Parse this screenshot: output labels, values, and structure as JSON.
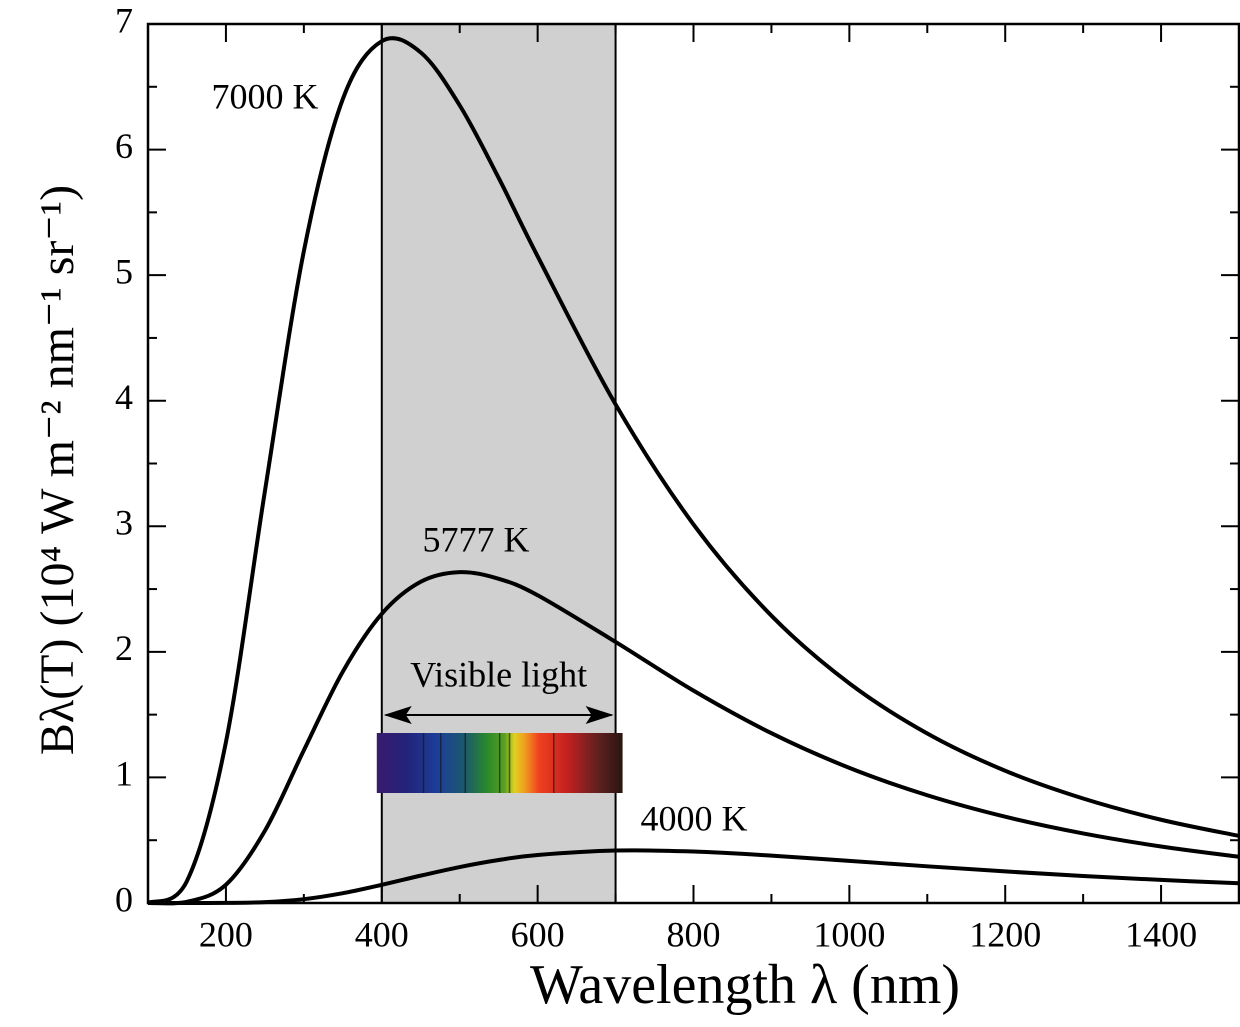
{
  "chart_data": {
    "type": "line",
    "x_label": "Wavelength λ (nm)",
    "y_label": "Bλ(T) (10⁴ W m⁻² nm⁻¹ sr⁻¹)",
    "x": [
      100,
      150,
      200,
      250,
      300,
      350,
      400,
      450,
      500,
      550,
      600,
      700,
      800,
      900,
      1000,
      1100,
      1200,
      1300,
      1400,
      1500
    ],
    "series": [
      {
        "name": "7000 K",
        "color": "#000000",
        "values": [
          0.0014,
          0.1755,
          1.281,
          3.279,
          5.191,
          6.402,
          6.863,
          6.773,
          6.352,
          5.774,
          5.15,
          3.971,
          3.015,
          2.288,
          1.749,
          1.35,
          1.053,
          0.832,
          0.663,
          0.534
        ]
      },
      {
        "name": "5777 K",
        "color": "#000000",
        "values": [
          2e-05,
          0.00965,
          0.1454,
          0.575,
          1.216,
          1.843,
          2.303,
          2.558,
          2.635,
          2.582,
          2.451,
          2.079,
          1.691,
          1.352,
          1.076,
          0.858,
          0.687,
          0.554,
          0.45,
          0.368
        ]
      },
      {
        "name": "4000 K",
        "color": "#000000",
        "values": [
          0,
          1e-05,
          0.00058,
          0.00688,
          0.0304,
          0.0781,
          0.1446,
          0.218,
          0.2865,
          0.3423,
          0.3826,
          0.4181,
          0.4099,
          0.3776,
          0.3356,
          0.2922,
          0.2514,
          0.2152,
          0.1837,
          0.1568
        ]
      }
    ],
    "xlim": [
      100,
      1500
    ],
    "ylim": [
      0,
      7
    ],
    "xticks": [
      200,
      400,
      600,
      800,
      1000,
      1200,
      1400
    ],
    "yticks": [
      0,
      1,
      2,
      3,
      4,
      5,
      6,
      7
    ],
    "xminorticks": [
      300,
      500,
      700,
      900,
      1100,
      1300
    ],
    "yminorticks": [
      0.5,
      1.5,
      2.5,
      3.5,
      4.5,
      5.5,
      6.5
    ],
    "highlight": [
      400,
      700
    ],
    "highlight_color": "#d0d0d0",
    "highlight_label": "Visible light"
  }
}
